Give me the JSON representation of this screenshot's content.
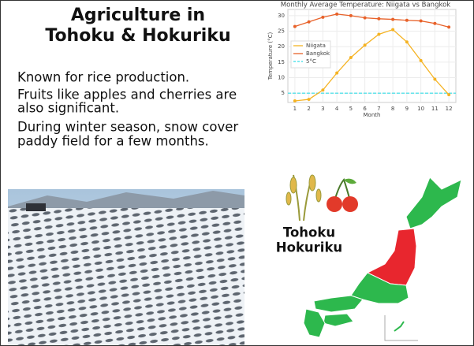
{
  "slide": {
    "title": [
      "Agriculture in",
      "Tohoku & Hokuriku"
    ],
    "body": [
      "Known for rice production.",
      "Fruits like apples and cherries are",
      "also significant.",
      "During winter season, snow cover",
      "paddy field for a few months."
    ],
    "map_label": [
      "Tohoku",
      "Hokuriku"
    ]
  },
  "chart_data": {
    "type": "line",
    "title": "Monthly Average Temperature: Niigata vs Bangkok",
    "x_label": "Month",
    "y_label": "Temperature (°C)",
    "x": [
      1,
      2,
      3,
      4,
      5,
      6,
      7,
      8,
      9,
      10,
      11,
      12
    ],
    "series": [
      {
        "name": "Niigata",
        "color": "#f5b323",
        "values": [
          2.5,
          3,
          6,
          11.5,
          16.5,
          20.5,
          24,
          25.5,
          21.5,
          15.5,
          9.5,
          4.5
        ]
      },
      {
        "name": "Bangkok",
        "color": "#e8622a",
        "values": [
          26.5,
          28,
          29.5,
          30.5,
          30,
          29.3,
          29,
          28.8,
          28.5,
          28.3,
          27.5,
          26.3
        ]
      }
    ],
    "hlines": [
      {
        "name": "5°C",
        "value": 5,
        "color": "#33dde8"
      }
    ],
    "xlim": [
      0.5,
      12.5
    ],
    "ylim": [
      2,
      32
    ],
    "xticks": [
      1,
      2,
      3,
      4,
      5,
      6,
      7,
      8,
      9,
      10,
      11,
      12
    ],
    "yticks": [
      5,
      10,
      15,
      20,
      25,
      30
    ],
    "grid": true,
    "legend": "upper left"
  }
}
